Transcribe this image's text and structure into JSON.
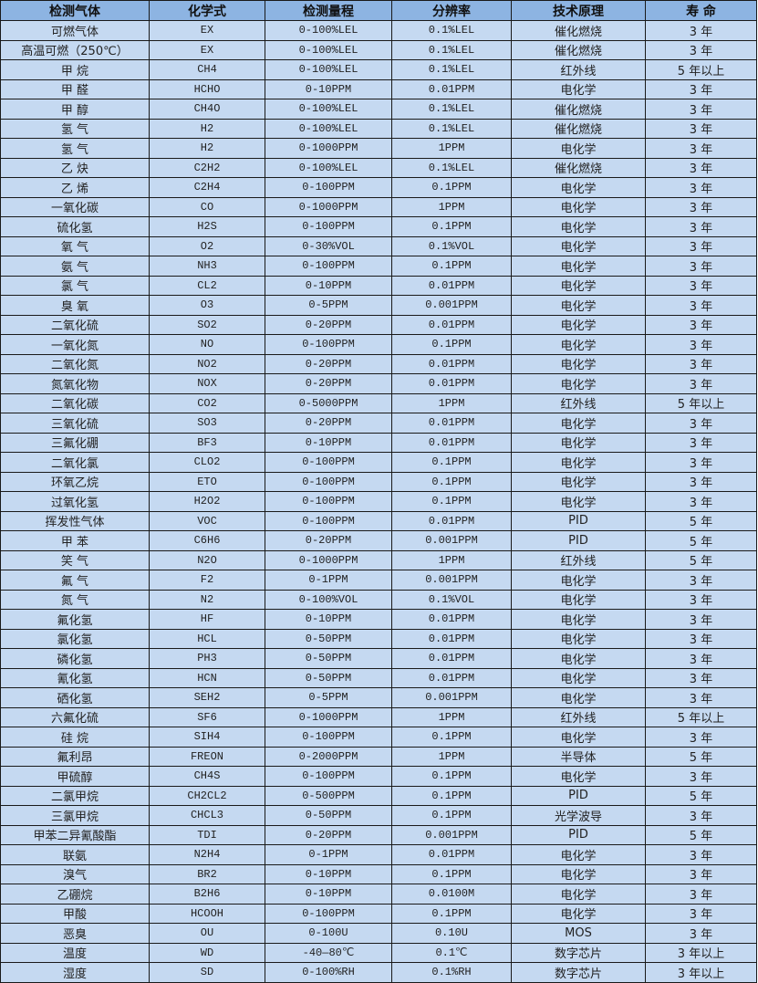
{
  "headers": [
    "检测气体",
    "化学式",
    "检测量程",
    "分辨率",
    "技术原理",
    "寿 命"
  ],
  "rows": [
    [
      "可燃气体",
      "EX",
      "0-100%LEL",
      "0.1%LEL",
      "催化燃烧",
      "3 年"
    ],
    [
      "高温可燃（250℃）",
      "EX",
      "0-100%LEL",
      "0.1%LEL",
      "催化燃烧",
      "3 年"
    ],
    [
      "甲 烷",
      "CH4",
      "0-100%LEL",
      "0.1%LEL",
      "红外线",
      "5 年以上"
    ],
    [
      "甲 醛",
      "HCHO",
      "0-10PPM",
      "0.01PPM",
      "电化学",
      "3 年"
    ],
    [
      "甲 醇",
      "CH4O",
      "0-100%LEL",
      "0.1%LEL",
      "催化燃烧",
      "3 年"
    ],
    [
      "氢 气",
      "H2",
      "0-100%LEL",
      "0.1%LEL",
      "催化燃烧",
      "3 年"
    ],
    [
      "氢 气",
      "H2",
      "0-1000PPM",
      "1PPM",
      "电化学",
      "3 年"
    ],
    [
      "乙 炔",
      "C2H2",
      "0-100%LEL",
      "0.1%LEL",
      "催化燃烧",
      "3 年"
    ],
    [
      "乙 烯",
      "C2H4",
      "0-100PPM",
      "0.1PPM",
      "电化学",
      "3 年"
    ],
    [
      "一氧化碳",
      "CO",
      "0-1000PPM",
      "1PPM",
      "电化学",
      "3 年"
    ],
    [
      "硫化氢",
      "H2S",
      "0-100PPM",
      "0.1PPM",
      "电化学",
      "3 年"
    ],
    [
      "氧 气",
      "O2",
      "0-30%VOL",
      "0.1%VOL",
      "电化学",
      "3 年"
    ],
    [
      "氨 气",
      "NH3",
      "0-100PPM",
      "0.1PPM",
      "电化学",
      "3 年"
    ],
    [
      "氯 气",
      "CL2",
      "0-10PPM",
      "0.01PPM",
      "电化学",
      "3 年"
    ],
    [
      "臭 氧",
      "O3",
      "0-5PPM",
      "0.001PPM",
      "电化学",
      "3 年"
    ],
    [
      "二氧化硫",
      "SO2",
      "0-20PPM",
      "0.01PPM",
      "电化学",
      "3 年"
    ],
    [
      "一氧化氮",
      "NO",
      "0-100PPM",
      "0.1PPM",
      "电化学",
      "3 年"
    ],
    [
      "二氧化氮",
      "NO2",
      "0-20PPM",
      "0.01PPM",
      "电化学",
      "3 年"
    ],
    [
      "氮氧化物",
      "NOX",
      "0-20PPM",
      "0.01PPM",
      "电化学",
      "3 年"
    ],
    [
      "二氧化碳",
      "CO2",
      "0-5000PPM",
      "1PPM",
      "红外线",
      "5 年以上"
    ],
    [
      "三氧化硫",
      "SO3",
      "0-20PPM",
      "0.01PPM",
      "电化学",
      "3 年"
    ],
    [
      "三氟化硼",
      "BF3",
      "0-10PPM",
      "0.01PPM",
      "电化学",
      "3 年"
    ],
    [
      "二氧化氯",
      "CLO2",
      "0-100PPM",
      "0.1PPM",
      "电化学",
      "3 年"
    ],
    [
      "环氧乙烷",
      "ETO",
      "0-100PPM",
      "0.1PPM",
      "电化学",
      "3 年"
    ],
    [
      "过氧化氢",
      "H2O2",
      "0-100PPM",
      "0.1PPM",
      "电化学",
      "3 年"
    ],
    [
      "挥发性气体",
      "VOC",
      "0-100PPM",
      "0.01PPM",
      "PID",
      "5 年"
    ],
    [
      "甲 苯",
      "C6H6",
      "0-20PPM",
      "0.001PPM",
      "PID",
      "5 年"
    ],
    [
      "笑 气",
      "N2O",
      "0-1000PPM",
      "1PPM",
      "红外线",
      "5 年"
    ],
    [
      "氟 气",
      "F2",
      "0-1PPM",
      "0.001PPM",
      "电化学",
      "3 年"
    ],
    [
      "氮 气",
      "N2",
      "0-100%VOL",
      "0.1%VOL",
      "电化学",
      "3 年"
    ],
    [
      "氟化氢",
      "HF",
      "0-10PPM",
      "0.01PPM",
      "电化学",
      "3 年"
    ],
    [
      "氯化氢",
      "HCL",
      "0-50PPM",
      "0.01PPM",
      "电化学",
      "3 年"
    ],
    [
      "磷化氢",
      "PH3",
      "0-50PPM",
      "0.01PPM",
      "电化学",
      "3 年"
    ],
    [
      "氰化氢",
      "HCN",
      "0-50PPM",
      "0.01PPM",
      "电化学",
      "3 年"
    ],
    [
      "硒化氢",
      "SEH2",
      "0-5PPM",
      "0.001PPM",
      "电化学",
      "3 年"
    ],
    [
      "六氟化硫",
      "SF6",
      "0-1000PPM",
      "1PPM",
      "红外线",
      "5 年以上"
    ],
    [
      "硅 烷",
      "SIH4",
      "0-100PPM",
      "0.1PPM",
      "电化学",
      "3 年"
    ],
    [
      "氟利昂",
      "FREON",
      "0-2000PPM",
      "1PPM",
      "半导体",
      "5 年"
    ],
    [
      "甲硫醇",
      "CH4S",
      "0-100PPM",
      "0.1PPM",
      "电化学",
      "3 年"
    ],
    [
      "二氯甲烷",
      "CH2CL2",
      "0-500PPM",
      "0.1PPM",
      "PID",
      "5 年"
    ],
    [
      "三氯甲烷",
      "CHCL3",
      "0-50PPM",
      "0.1PPM",
      "光学波导",
      "3 年"
    ],
    [
      "甲苯二异氰酸酯",
      "TDI",
      "0-20PPM",
      "0.001PPM",
      "PID",
      "5 年"
    ],
    [
      "联氨",
      "N2H4",
      "0-1PPM",
      "0.01PPM",
      "电化学",
      "3 年"
    ],
    [
      "溴气",
      "BR2",
      "0-10PPM",
      "0.1PPM",
      "电化学",
      "3 年"
    ],
    [
      "乙硼烷",
      "B2H6",
      "0-10PPM",
      "0.0100M",
      "电化学",
      "3 年"
    ],
    [
      "甲酸",
      "HCOOH",
      "0-100PPM",
      "0.1PPM",
      "电化学",
      "3 年"
    ],
    [
      "恶臭",
      "OU",
      "0-100U",
      "0.10U",
      "MOS",
      "3 年"
    ],
    [
      "温度",
      "WD",
      "-40—80℃",
      "0.1℃",
      "数字芯片",
      "3 年以上"
    ],
    [
      "湿度",
      "SD",
      "0-100%RH",
      "0.1%RH",
      "数字芯片",
      "3 年以上"
    ]
  ]
}
